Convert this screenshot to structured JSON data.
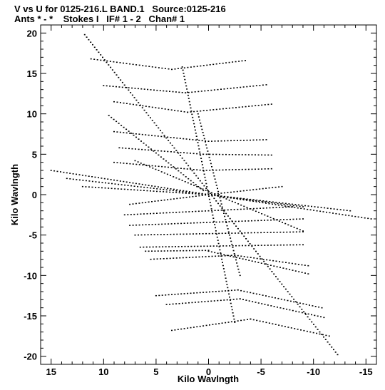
{
  "header": {
    "title": "V vs U for 0125-216.L BAND.1   Source:0125-216",
    "subtitle": "Ants * - *    Stokes I   IF# 1 - 2   Chan# 1"
  },
  "chart_data": {
    "type": "scatter",
    "xlabel": "Kilo Wavlngth",
    "ylabel": "Kilo Wavlngth",
    "xlim": [
      16,
      -16
    ],
    "ylim": [
      -21,
      21
    ],
    "x_ticks": [
      15,
      10,
      5,
      0,
      -5,
      -10,
      -15
    ],
    "x_tick_labels": [
      "15",
      "10",
      "5",
      "0",
      "-5",
      "-10",
      "-15"
    ],
    "y_ticks": [
      20,
      15,
      10,
      5,
      0,
      -5,
      -10,
      -15,
      -20
    ],
    "y_tick_labels": [
      "20",
      "15",
      "10",
      "5",
      "0",
      "-5",
      "-10",
      "-15",
      "-20"
    ],
    "grid": false,
    "marker_color": "#000000",
    "tracks": [
      {
        "from": [
          11.8,
          19.8
        ],
        "to": [
          -12.3,
          -19.8
        ],
        "bend": 0.0
      },
      {
        "from": [
          2.5,
          15.8
        ],
        "to": [
          -2.5,
          -15.8
        ],
        "bend": 0.0
      },
      {
        "from": [
          1.0,
          10.0
        ],
        "to": [
          -3.0,
          -10.0
        ],
        "bend": 0.0
      },
      {
        "from": [
          11.2,
          16.8
        ],
        "to": [
          3.5,
          15.5
        ],
        "bend": 0.0
      },
      {
        "from": [
          3.5,
          15.5
        ],
        "to": [
          -3.5,
          16.6
        ],
        "bend": 0.0
      },
      {
        "from": [
          10.0,
          13.5
        ],
        "to": [
          2.2,
          12.6
        ],
        "bend": 0.0
      },
      {
        "from": [
          2.2,
          12.6
        ],
        "to": [
          -5.5,
          13.6
        ],
        "bend": 0.0
      },
      {
        "from": [
          9.0,
          11.5
        ],
        "to": [
          2.0,
          10.2
        ],
        "bend": 0.0
      },
      {
        "from": [
          2.0,
          10.2
        ],
        "to": [
          -6.0,
          11.2
        ],
        "bend": 0.0
      },
      {
        "from": [
          9.5,
          9.8
        ],
        "to": [
          0.5,
          0.5
        ],
        "bend": 0.0
      },
      {
        "from": [
          9.0,
          7.8
        ],
        "to": [
          0.0,
          6.6
        ],
        "bend": 0.0
      },
      {
        "from": [
          0.0,
          6.6
        ],
        "to": [
          -5.5,
          6.8
        ],
        "bend": 0.0
      },
      {
        "from": [
          8.5,
          5.8
        ],
        "to": [
          0.5,
          5.0
        ],
        "bend": 0.0
      },
      {
        "from": [
          0.5,
          5.0
        ],
        "to": [
          -6.0,
          4.9
        ],
        "bend": 0.0
      },
      {
        "from": [
          9.0,
          4.0
        ],
        "to": [
          0.5,
          3.0
        ],
        "bend": 0.0
      },
      {
        "from": [
          0.5,
          3.0
        ],
        "to": [
          -6.0,
          3.2
        ],
        "bend": 0.0
      },
      {
        "from": [
          15.0,
          3.0
        ],
        "to": [
          0.0,
          0.0
        ],
        "bend": 0.0
      },
      {
        "from": [
          13.5,
          2.0
        ],
        "to": [
          0.0,
          0.0
        ],
        "bend": 0.0
      },
      {
        "from": [
          12.0,
          1.0
        ],
        "to": [
          0.0,
          0.0
        ],
        "bend": 0.0
      },
      {
        "from": [
          0.0,
          0.0
        ],
        "to": [
          -7.0,
          1.0
        ],
        "bend": 0.0
      },
      {
        "from": [
          0.0,
          0.0
        ],
        "to": [
          -9.0,
          -1.5
        ],
        "bend": 0.0
      },
      {
        "from": [
          0.0,
          0.0
        ],
        "to": [
          -15.5,
          -3.0
        ],
        "bend": 0.0
      },
      {
        "from": [
          0.0,
          0.0
        ],
        "to": [
          -13.5,
          -2.0
        ],
        "bend": 0.0
      },
      {
        "from": [
          7.5,
          -1.2
        ],
        "to": [
          0.0,
          0.0
        ],
        "bend": 0.0
      },
      {
        "from": [
          7.0,
          4.2
        ],
        "to": [
          -9.0,
          -4.5
        ],
        "bend": 0.0
      },
      {
        "from": [
          8.0,
          -2.5
        ],
        "to": [
          -8.0,
          -1.5
        ],
        "bend": 0.0
      },
      {
        "from": [
          7.5,
          -3.8
        ],
        "to": [
          -9.0,
          -3.0
        ],
        "bend": 0.0
      },
      {
        "from": [
          7.0,
          -5.0
        ],
        "to": [
          -9.0,
          -4.6
        ],
        "bend": 0.0
      },
      {
        "from": [
          6.5,
          -6.5
        ],
        "to": [
          -9.0,
          -6.2
        ],
        "bend": 0.0
      },
      {
        "from": [
          6.0,
          -7.0
        ],
        "to": [
          0.0,
          -6.9
        ],
        "bend": 0.0
      },
      {
        "from": [
          0.0,
          -7.0
        ],
        "to": [
          -9.5,
          -9.8
        ],
        "bend": 0.0
      },
      {
        "from": [
          5.0,
          -12.5
        ],
        "to": [
          -2.8,
          -11.8
        ],
        "bend": 0.0
      },
      {
        "from": [
          -2.8,
          -11.8
        ],
        "to": [
          -10.8,
          -14.0
        ],
        "bend": 0.0
      },
      {
        "from": [
          4.0,
          -13.6
        ],
        "to": [
          -3.0,
          -12.9
        ],
        "bend": 0.0
      },
      {
        "from": [
          -3.0,
          -12.9
        ],
        "to": [
          -11.0,
          -15.2
        ],
        "bend": 0.0
      },
      {
        "from": [
          3.5,
          -16.8
        ],
        "to": [
          -4.0,
          -15.4
        ],
        "bend": 0.0
      },
      {
        "from": [
          -4.0,
          -15.4
        ],
        "to": [
          -11.5,
          -17.5
        ],
        "bend": 0.0
      },
      {
        "from": [
          5.5,
          -8.0
        ],
        "to": [
          -2.5,
          -7.5
        ],
        "bend": 0.0
      },
      {
        "from": [
          -2.5,
          -7.5
        ],
        "to": [
          -9.5,
          -8.8
        ],
        "bend": 0.0
      }
    ]
  }
}
